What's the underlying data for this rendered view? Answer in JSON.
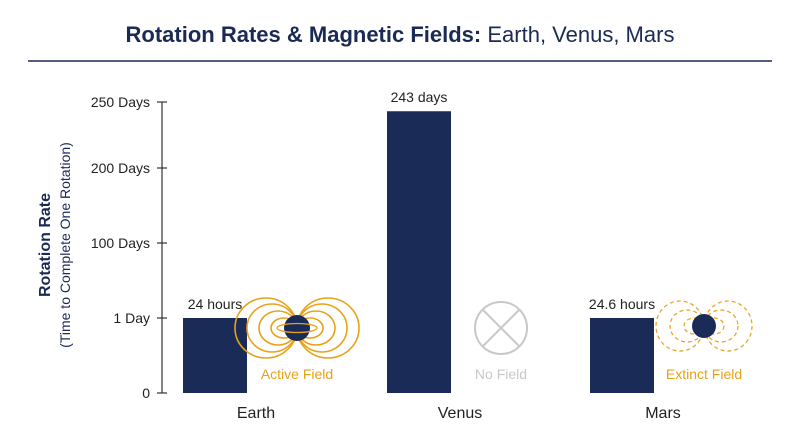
{
  "title": {
    "bold": "Rotation Rates & Magnetic Fields:",
    "regular": " Earth, Venus, Mars"
  },
  "colors": {
    "bar": "#1a2b57",
    "accent": "#e8a21a",
    "muted": "#c8c8c8",
    "text": "#222222"
  },
  "chart_data": {
    "type": "bar",
    "categories": [
      "Earth",
      "Venus",
      "Mars"
    ],
    "values": [
      1,
      243,
      1.025
    ],
    "data_labels": [
      "24 hours",
      "243 days",
      "24.6 hours"
    ],
    "ylabel": "Rotation Rate",
    "ylabel_sub": "(Time to Complete One Rotation)",
    "yticks": [
      "0",
      "1 Day",
      "100 Days",
      "200 Days",
      "250 Days"
    ],
    "ytick_values": [
      0,
      1,
      100,
      200,
      250
    ],
    "grid": false,
    "legend": "none"
  },
  "fields": [
    {
      "planet": "Earth",
      "label": "Active Field",
      "icon": "active-field-icon"
    },
    {
      "planet": "Venus",
      "label": "No Field",
      "icon": "no-field-icon"
    },
    {
      "planet": "Mars",
      "label": "Extinct Field",
      "icon": "extinct-field-icon"
    }
  ]
}
